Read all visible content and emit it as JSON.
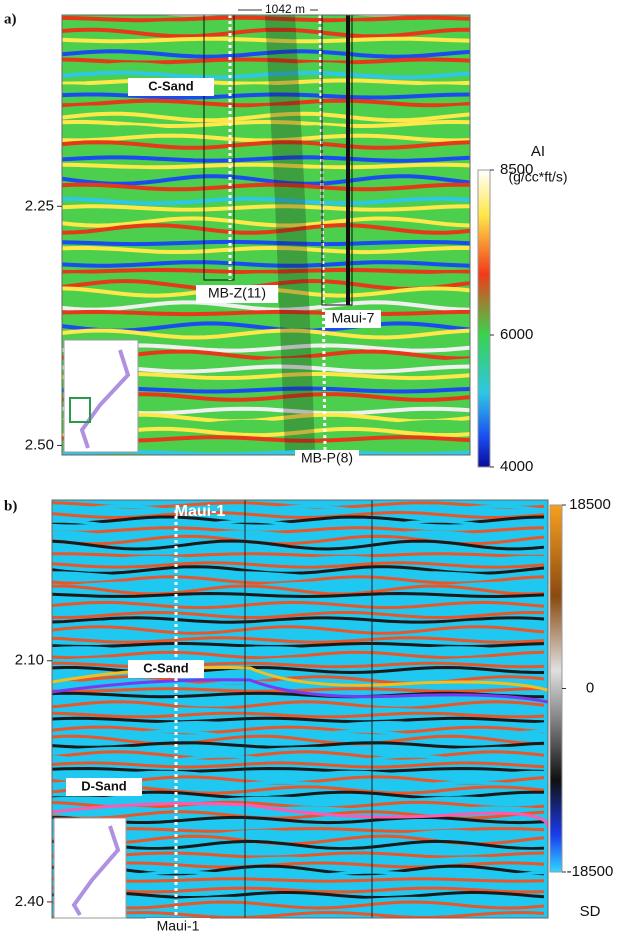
{
  "panel_a": {
    "label": "a)",
    "scale_bar": "1042 m",
    "annotations": [
      "C-Sand"
    ],
    "wells": [
      "MB-Z(11)",
      "Maui-7",
      "MB-P(8)"
    ],
    "y_axis": {
      "ylim": [
        2.05,
        2.51
      ],
      "yticks": [
        2.25,
        {
          "value": 2.5,
          "label": "2.50"
        }
      ]
    },
    "colorbar": {
      "title": "AI",
      "unit": "(g/cc*ft/s)",
      "clim": [
        4000,
        8500
      ],
      "ticks": [
        8500,
        6000,
        4000
      ]
    }
  },
  "panel_b": {
    "label": "b)",
    "well_top": "Maui-1",
    "well_bottom": "Maui-1",
    "annotations": [
      "C-Sand",
      "D-Sand"
    ],
    "y_axis": {
      "ylim": [
        1.9,
        2.42
      ],
      "yticks": [
        {
          "value": 2.1,
          "label": "2.10"
        },
        {
          "value": 2.4,
          "label": "2.40"
        }
      ]
    },
    "colorbar": {
      "title": "SD",
      "clim": [
        -18500,
        18500
      ],
      "ticks": [
        18500,
        0,
        -18500
      ]
    }
  }
}
